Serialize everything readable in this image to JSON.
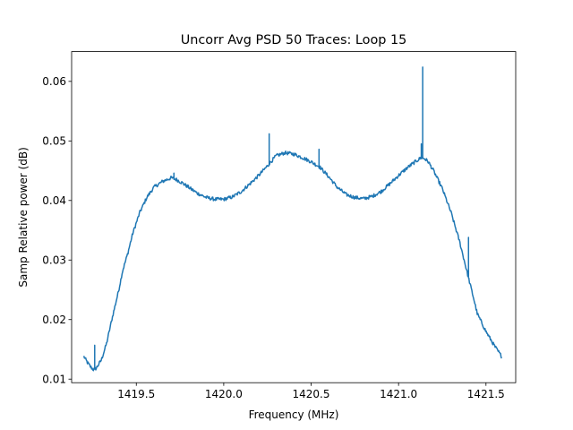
{
  "chart_data": {
    "type": "line",
    "title": "Uncorr Avg PSD 50 Traces: Loop 15",
    "xlabel": "Frequency (MHz)",
    "ylabel": "Samp Relative power (dB)",
    "xlim": [
      1419.13,
      1421.67
    ],
    "ylim": [
      0.0094,
      0.065
    ],
    "xticks": [
      1419.5,
      1420.0,
      1420.5,
      1421.0,
      1421.5
    ],
    "xtick_labels": [
      "1419.5",
      "1420.0",
      "1420.5",
      "1421.0",
      "1421.5"
    ],
    "yticks": [
      0.01,
      0.02,
      0.03,
      0.04,
      0.05,
      0.06
    ],
    "ytick_labels": [
      "0.01",
      "0.02",
      "0.03",
      "0.04",
      "0.05",
      "0.06"
    ],
    "grid": false,
    "line_color": "#1f77b4",
    "series": [
      {
        "x": [
          1419.2,
          1419.22,
          1419.24,
          1419.255,
          1419.27,
          1419.3,
          1419.33,
          1419.36,
          1419.4,
          1419.42,
          1419.45,
          1419.48,
          1419.52,
          1419.56,
          1419.6,
          1419.65,
          1419.7,
          1419.73,
          1419.76,
          1419.8,
          1419.85,
          1419.9,
          1419.95,
          1420.0,
          1420.05,
          1420.1,
          1420.15,
          1420.2,
          1420.25,
          1420.27,
          1420.3,
          1420.35,
          1420.4,
          1420.45,
          1420.5,
          1420.55,
          1420.6,
          1420.65,
          1420.7,
          1420.75,
          1420.8,
          1420.85,
          1420.9,
          1420.95,
          1421.0,
          1421.05,
          1421.1,
          1421.13,
          1421.15,
          1421.17,
          1421.2,
          1421.25,
          1421.3,
          1421.35,
          1421.4,
          1421.43,
          1421.45,
          1421.5,
          1421.55,
          1421.59
        ],
        "y": [
          0.0138,
          0.0128,
          0.012,
          0.0116,
          0.0118,
          0.0132,
          0.016,
          0.02,
          0.025,
          0.028,
          0.031,
          0.0345,
          0.038,
          0.0405,
          0.0422,
          0.0432,
          0.0438,
          0.0435,
          0.043,
          0.0422,
          0.0412,
          0.0405,
          0.0402,
          0.0402,
          0.0406,
          0.0415,
          0.0428,
          0.0442,
          0.0458,
          0.0465,
          0.0475,
          0.048,
          0.0478,
          0.0472,
          0.0465,
          0.0456,
          0.044,
          0.0422,
          0.041,
          0.0405,
          0.0403,
          0.0407,
          0.0415,
          0.0428,
          0.0442,
          0.0455,
          0.0466,
          0.0472,
          0.047,
          0.0465,
          0.045,
          0.042,
          0.038,
          0.033,
          0.027,
          0.0235,
          0.021,
          0.018,
          0.0155,
          0.0138
        ]
      }
    ],
    "spikes": [
      {
        "x": 1419.262,
        "y": 0.0157
      },
      {
        "x": 1419.43,
        "y": 0.029
      },
      {
        "x": 1419.715,
        "y": 0.0446
      },
      {
        "x": 1420.26,
        "y": 0.0512
      },
      {
        "x": 1420.545,
        "y": 0.0486
      },
      {
        "x": 1421.138,
        "y": 0.0624
      },
      {
        "x": 1421.13,
        "y": 0.0495
      },
      {
        "x": 1421.4,
        "y": 0.0338
      }
    ]
  }
}
